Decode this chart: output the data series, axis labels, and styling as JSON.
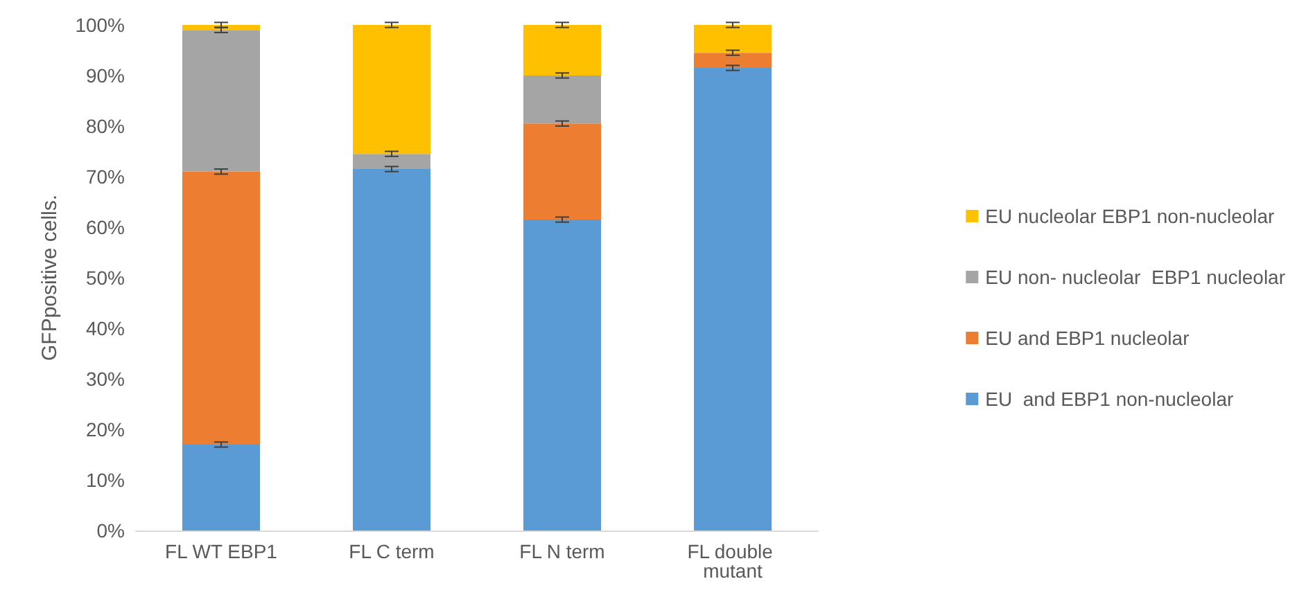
{
  "chart_data": {
    "type": "bar",
    "stacked": true,
    "ylabel": "GFPpositive cells.",
    "categories": [
      "FL WT EBP1",
      "FL C term",
      "FL N term",
      "FL double mutant"
    ],
    "series": [
      {
        "name": "EU  and EBP1 non-nucleolar",
        "color": "#5b9bd5",
        "values": [
          17,
          71.5,
          61.5,
          91.5
        ],
        "errors": [
          0.5,
          0.5,
          0.5,
          0.5
        ]
      },
      {
        "name": "EU and EBP1 nucleolar",
        "color": "#ed7d31",
        "values": [
          54,
          0,
          19,
          3
        ],
        "errors": [
          0.5,
          null,
          0.5,
          0.5
        ]
      },
      {
        "name": "EU non- nucleolar  EBP1 nucleolar",
        "color": "#a5a5a5",
        "values": [
          28,
          3,
          9.5,
          0
        ],
        "errors": [
          0.5,
          0.5,
          0.5,
          null
        ]
      },
      {
        "name": "EU nucleolar EBP1 non-nucleolar",
        "color": "#ffc000",
        "values": [
          1,
          25.5,
          10,
          5.5
        ],
        "errors": [
          0.5,
          0.5,
          0.5,
          0.5
        ]
      }
    ],
    "ylim": [
      0,
      100
    ],
    "yticks": [
      {
        "value": 0,
        "label": "0%"
      },
      {
        "value": 10,
        "label": "10%"
      },
      {
        "value": 20,
        "label": "20%"
      },
      {
        "value": 30,
        "label": "30%"
      },
      {
        "value": 40,
        "label": "40%"
      },
      {
        "value": 50,
        "label": "50%"
      },
      {
        "value": 60,
        "label": "60%"
      },
      {
        "value": 70,
        "label": "70%"
      },
      {
        "value": 80,
        "label": "80%"
      },
      {
        "value": 90,
        "label": "90%"
      },
      {
        "value": 100,
        "label": "100%"
      }
    ],
    "grid": false,
    "legend": "right"
  }
}
